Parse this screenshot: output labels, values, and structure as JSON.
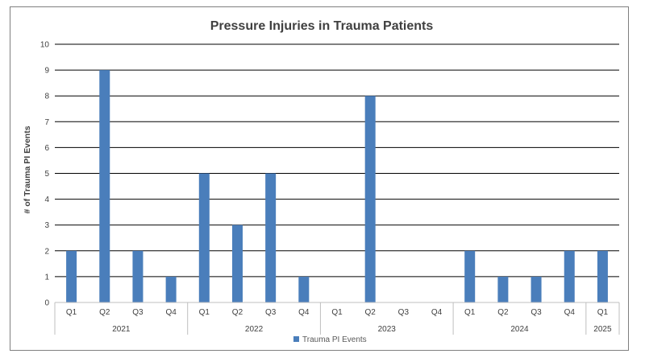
{
  "chart_data": {
    "type": "bar",
    "title": "Pressure Injuries in Trauma Patients",
    "ylabel": "# of Trauma PI Events",
    "xlabel": "",
    "ylim": [
      0,
      10
    ],
    "yticks": [
      0,
      1,
      2,
      3,
      4,
      5,
      6,
      7,
      8,
      9,
      10
    ],
    "grid": true,
    "legend": "bottom",
    "color": "#4a7ebb",
    "groups": [
      {
        "label": "2021",
        "categories": [
          "Q1",
          "Q2",
          "Q3",
          "Q4"
        ]
      },
      {
        "label": "2022",
        "categories": [
          "Q1",
          "Q2",
          "Q3",
          "Q4"
        ]
      },
      {
        "label": "2023",
        "categories": [
          "Q1",
          "Q2",
          "Q3",
          "Q4"
        ]
      },
      {
        "label": "2024",
        "categories": [
          "Q1",
          "Q2",
          "Q3",
          "Q4"
        ]
      },
      {
        "label": "2025",
        "categories": [
          "Q1"
        ]
      }
    ],
    "series": [
      {
        "name": "Trauma PI Events",
        "values": [
          2,
          9,
          2,
          1,
          5,
          3,
          5,
          1,
          0,
          8,
          0,
          0,
          2,
          1,
          1,
          2,
          2
        ]
      }
    ]
  }
}
